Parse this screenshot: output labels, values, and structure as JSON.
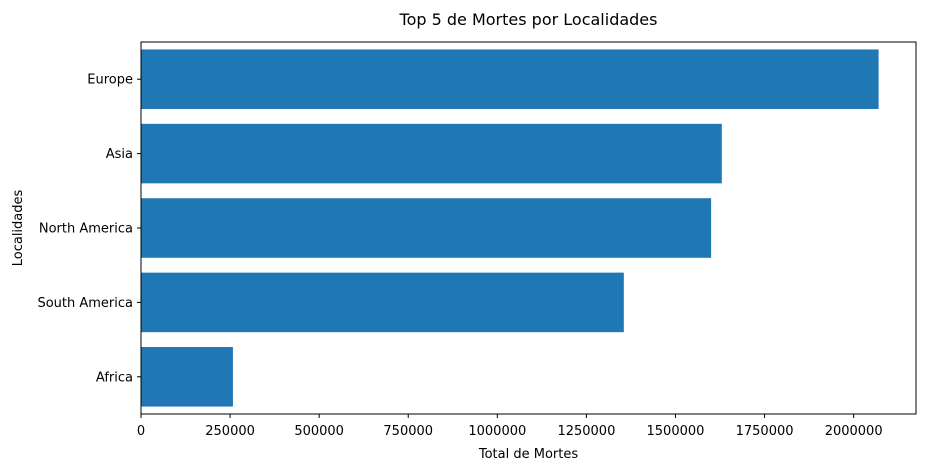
{
  "chart_data": {
    "type": "bar",
    "orientation": "horizontal",
    "title": "Top 5 de Mortes por Localidades",
    "xlabel": "Total de Mortes",
    "ylabel": "Localidades",
    "categories": [
      "Europe",
      "Asia",
      "North America",
      "South America",
      "Africa"
    ],
    "values": [
      2070000,
      1630000,
      1600000,
      1355000,
      258000
    ],
    "xlim": [
      0,
      2175000
    ],
    "xticks": [
      0,
      250000,
      500000,
      750000,
      1000000,
      1250000,
      1500000,
      1750000,
      2000000
    ],
    "xtick_labels": [
      "0",
      "250000",
      "500000",
      "750000",
      "1000000",
      "1250000",
      "1500000",
      "1750000",
      "2000000"
    ],
    "bar_color": "#1f77b4",
    "grid": false,
    "legend": "none"
  }
}
